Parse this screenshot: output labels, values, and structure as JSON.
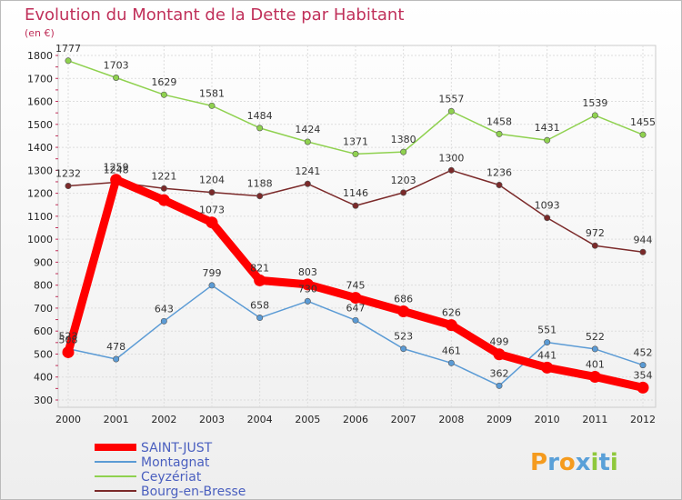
{
  "title": "Evolution du Montant de la Dette par Habitant",
  "unit": "(en €)",
  "logo": "Proxiti",
  "chart_data": {
    "type": "line",
    "title": "Evolution du Montant de la Dette par Habitant",
    "ylabel": "(en €)",
    "xlabel": "",
    "x": [
      "2000",
      "2001",
      "2002",
      "2003",
      "2004",
      "2005",
      "2006",
      "2007",
      "2008",
      "2009",
      "2010",
      "2011",
      "2012"
    ],
    "ylim": [
      300,
      1800
    ],
    "yticks": [
      300,
      400,
      500,
      600,
      700,
      800,
      900,
      1000,
      1100,
      1200,
      1300,
      1400,
      1500,
      1600,
      1700,
      1800
    ],
    "grid": true,
    "legend_position": "bottom-left",
    "series": [
      {
        "name": "SAINT-JUST",
        "color": "#ff0000",
        "values": [
          508,
          1259,
          1170,
          1073,
          821,
          803,
          745,
          686,
          626,
          499,
          441,
          401,
          354
        ],
        "labels": [
          "508",
          "1259",
          "",
          "1073",
          "821",
          "803",
          "745",
          "686",
          "626",
          "499",
          "441",
          "401",
          "354"
        ]
      },
      {
        "name": "Montagnat",
        "color": "#5b9bd5",
        "values": [
          523,
          478,
          643,
          799,
          658,
          730,
          647,
          523,
          461,
          362,
          551,
          522,
          452
        ],
        "labels": [
          "523",
          "478",
          "643",
          "799",
          "658",
          "730",
          "647",
          "523",
          "461",
          "362",
          "551",
          "522",
          "452"
        ]
      },
      {
        "name": "Ceyzériat",
        "color": "#8fd14f",
        "values": [
          1777,
          1703,
          1629,
          1581,
          1484,
          1424,
          1371,
          1380,
          1557,
          1458,
          1431,
          1539,
          1455
        ],
        "labels": [
          "1777",
          "1703",
          "1629",
          "1581",
          "1484",
          "1424",
          "1371",
          "1380",
          "1557",
          "1458",
          "1431",
          "1539",
          "1455"
        ]
      },
      {
        "name": "Bourg-en-Bresse",
        "color": "#7b2a2a",
        "values": [
          1232,
          1248,
          1221,
          1204,
          1188,
          1241,
          1146,
          1203,
          1300,
          1236,
          1093,
          972,
          944
        ],
        "labels": [
          "1232",
          "1248",
          "1221",
          "1204",
          "1188",
          "1241",
          "1146",
          "1203",
          "1300",
          "1236",
          "1093",
          "972",
          "944"
        ]
      }
    ]
  }
}
